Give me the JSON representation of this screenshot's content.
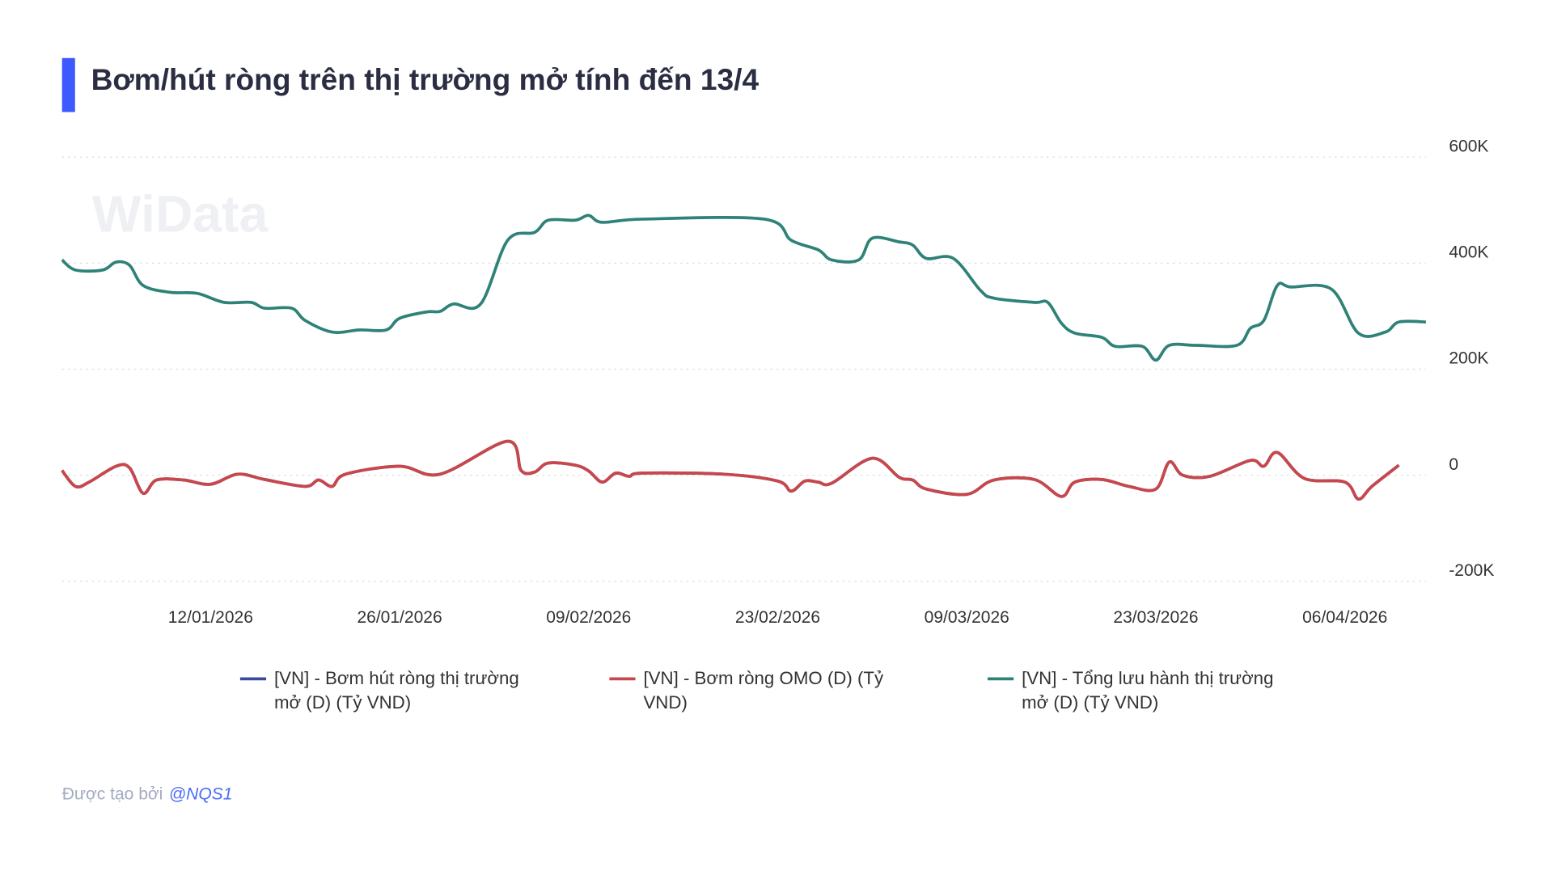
{
  "chart_data": {
    "type": "line",
    "title": "Bơm/hút ròng trên thị trường mở tính đến 13/4",
    "watermark": "WiData",
    "xlim": [
      "2026-01-01",
      "2026-04-12"
    ],
    "xticks": [
      {
        "value": "2026-01-12",
        "label": "12/01/2026"
      },
      {
        "value": "2026-01-26",
        "label": "26/01/2026"
      },
      {
        "value": "2026-02-09",
        "label": "09/02/2026"
      },
      {
        "value": "2026-02-23",
        "label": "23/02/2026"
      },
      {
        "value": "2026-03-09",
        "label": "09/03/2026"
      },
      {
        "value": "2026-03-23",
        "label": "23/03/2026"
      },
      {
        "value": "2026-04-06",
        "label": "06/04/2026"
      }
    ],
    "ylim": [
      -200000,
      600000
    ],
    "yticks": [
      {
        "value": -200000,
        "label": "-200K"
      },
      0,
      {
        "value": 200000,
        "label": "200K"
      },
      {
        "value": 400000,
        "label": "400K"
      },
      {
        "value": 600000,
        "label": "600K"
      }
    ],
    "grid": true,
    "series": [
      {
        "name": "[VN] - Bơm hút ròng thị trường mở (D) (Tỷ VND)",
        "color": "#3a4a9f",
        "x": [
          "2026-01-01",
          "2026-01-02",
          "2026-01-03",
          "2026-01-05",
          "2026-01-06",
          "2026-01-07",
          "2026-01-08",
          "2026-01-10",
          "2026-01-12",
          "2026-01-14",
          "2026-01-16",
          "2026-01-19",
          "2026-01-20",
          "2026-01-21",
          "2026-01-22",
          "2026-01-26",
          "2026-01-29",
          "2026-02-03",
          "2026-02-04",
          "2026-02-05",
          "2026-02-06",
          "2026-02-08",
          "2026-02-09",
          "2026-02-10",
          "2026-02-11",
          "2026-02-12",
          "2026-02-13",
          "2026-02-19",
          "2026-02-23",
          "2026-02-24",
          "2026-02-25",
          "2026-02-26",
          "2026-02-27",
          "2026-03-02",
          "2026-03-04",
          "2026-03-05",
          "2026-03-06",
          "2026-03-09",
          "2026-03-11",
          "2026-03-14",
          "2026-03-16",
          "2026-03-17",
          "2026-03-19",
          "2026-03-21",
          "2026-03-23",
          "2026-03-24",
          "2026-03-25",
          "2026-03-27",
          "2026-03-30",
          "2026-03-31",
          "2026-04-01",
          "2026-04-03",
          "2026-04-06",
          "2026-04-07",
          "2026-04-08",
          "2026-04-10"
        ],
        "values": [
          9000,
          -21000,
          -13000,
          17000,
          14000,
          -34000,
          -9000,
          -9000,
          -17000,
          2000,
          -8000,
          -21000,
          -9000,
          -21000,
          2000,
          17000,
          2000,
          64000,
          9000,
          6000,
          23000,
          19000,
          8000,
          -13000,
          4000,
          -2000,
          4000,
          2000,
          -11000,
          -30000,
          -11000,
          -13000,
          -15000,
          32000,
          -4000,
          -9000,
          -26000,
          -36000,
          -9000,
          -8000,
          -40000,
          -13000,
          -8000,
          -21000,
          -26000,
          25000,
          0,
          -2000,
          28000,
          17000,
          43000,
          -6000,
          -13000,
          -45000,
          -21000,
          19000
        ]
      },
      {
        "name": "[VN] - Bơm ròng OMO (D) (Tỷ VND)",
        "color": "#c8474b",
        "x": [
          "2026-01-01",
          "2026-01-02",
          "2026-01-03",
          "2026-01-05",
          "2026-01-06",
          "2026-01-07",
          "2026-01-08",
          "2026-01-10",
          "2026-01-12",
          "2026-01-14",
          "2026-01-16",
          "2026-01-19",
          "2026-01-20",
          "2026-01-21",
          "2026-01-22",
          "2026-01-26",
          "2026-01-29",
          "2026-02-03",
          "2026-02-04",
          "2026-02-05",
          "2026-02-06",
          "2026-02-08",
          "2026-02-09",
          "2026-02-10",
          "2026-02-11",
          "2026-02-12",
          "2026-02-13",
          "2026-02-19",
          "2026-02-23",
          "2026-02-24",
          "2026-02-25",
          "2026-02-26",
          "2026-02-27",
          "2026-03-02",
          "2026-03-04",
          "2026-03-05",
          "2026-03-06",
          "2026-03-09",
          "2026-03-11",
          "2026-03-14",
          "2026-03-16",
          "2026-03-17",
          "2026-03-19",
          "2026-03-21",
          "2026-03-23",
          "2026-03-24",
          "2026-03-25",
          "2026-03-27",
          "2026-03-30",
          "2026-03-31",
          "2026-04-01",
          "2026-04-03",
          "2026-04-06",
          "2026-04-07",
          "2026-04-08",
          "2026-04-10"
        ],
        "values": [
          9000,
          -21000,
          -13000,
          17000,
          14000,
          -34000,
          -9000,
          -9000,
          -17000,
          2000,
          -8000,
          -21000,
          -9000,
          -21000,
          2000,
          17000,
          2000,
          64000,
          9000,
          6000,
          23000,
          19000,
          8000,
          -13000,
          4000,
          -2000,
          4000,
          2000,
          -11000,
          -30000,
          -11000,
          -13000,
          -15000,
          32000,
          -4000,
          -9000,
          -26000,
          -36000,
          -9000,
          -8000,
          -40000,
          -13000,
          -8000,
          -21000,
          -26000,
          25000,
          0,
          -2000,
          28000,
          17000,
          43000,
          -6000,
          -13000,
          -45000,
          -21000,
          19000
        ]
      },
      {
        "name": "[VN] - Tổng lưu hành thị trường mở (D) (Tỷ VND)",
        "color": "#2e8277",
        "x": [
          "2026-01-01",
          "2026-01-02",
          "2026-01-04",
          "2026-01-05",
          "2026-01-06",
          "2026-01-07",
          "2026-01-09",
          "2026-01-11",
          "2026-01-13",
          "2026-01-15",
          "2026-01-16",
          "2026-01-18",
          "2026-01-19",
          "2026-01-21",
          "2026-01-23",
          "2026-01-25",
          "2026-01-26",
          "2026-01-28",
          "2026-01-29",
          "2026-01-30",
          "2026-02-01",
          "2026-02-03",
          "2026-02-05",
          "2026-02-06",
          "2026-02-08",
          "2026-02-09",
          "2026-02-10",
          "2026-02-13",
          "2026-02-22",
          "2026-02-24",
          "2026-02-26",
          "2026-02-27",
          "2026-03-01",
          "2026-03-02",
          "2026-03-04",
          "2026-03-05",
          "2026-03-06",
          "2026-03-08",
          "2026-03-10",
          "2026-03-11",
          "2026-03-14",
          "2026-03-15",
          "2026-03-16",
          "2026-03-17",
          "2026-03-19",
          "2026-03-20",
          "2026-03-22",
          "2026-03-23",
          "2026-03-24",
          "2026-03-26",
          "2026-03-29",
          "2026-03-30",
          "2026-03-31",
          "2026-04-01",
          "2026-04-02",
          "2026-04-05",
          "2026-04-07",
          "2026-04-09",
          "2026-04-10",
          "2026-04-12"
        ],
        "values": [
          406000,
          387000,
          387000,
          402000,
          396000,
          358000,
          345000,
          343000,
          326000,
          326000,
          315000,
          315000,
          292000,
          270000,
          274000,
          274000,
          296000,
          308000,
          309000,
          323000,
          323000,
          443000,
          458000,
          481000,
          481000,
          490000,
          477000,
          483000,
          483000,
          443000,
          425000,
          406000,
          406000,
          447000,
          440000,
          434000,
          409000,
          409000,
          349000,
          334000,
          326000,
          326000,
          287000,
          268000,
          260000,
          243000,
          243000,
          217000,
          245000,
          245000,
          245000,
          277000,
          292000,
          358000,
          355000,
          351000,
          268000,
          270000,
          289000,
          289000
        ]
      }
    ],
    "footer": {
      "text": "Được tạo bởi",
      "author": "@NQS1"
    }
  }
}
